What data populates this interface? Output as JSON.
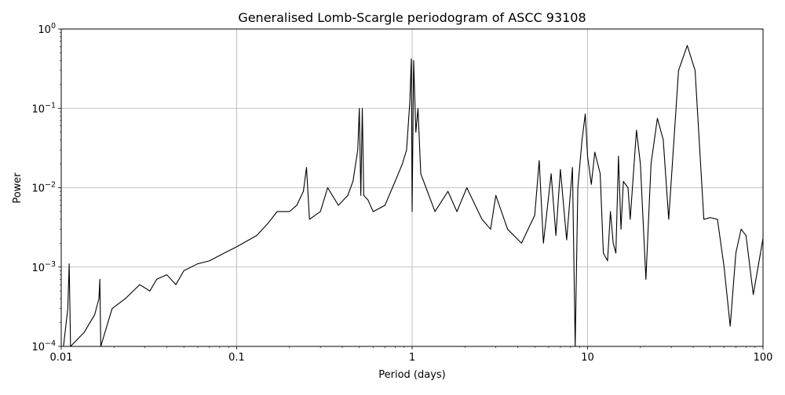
{
  "chart_data": {
    "type": "line",
    "title": "Generalised Lomb-Scargle periodogram of ASCC 93108",
    "xlabel": "Period (days)",
    "ylabel": "Power",
    "xscale": "log",
    "yscale": "log",
    "xlim": [
      0.01,
      100
    ],
    "ylim": [
      0.0001,
      1
    ],
    "grid": true,
    "line_color": "#000000",
    "x_ticks": [
      {
        "value": 0.01,
        "label": "0.01"
      },
      {
        "value": 0.1,
        "label": "0.1"
      },
      {
        "value": 1,
        "label": "1"
      },
      {
        "value": 10,
        "label": "10"
      },
      {
        "value": 100,
        "label": "100"
      }
    ],
    "y_ticks": [
      {
        "value": 0.0001,
        "base": "10",
        "exp": "−4"
      },
      {
        "value": 0.001,
        "base": "10",
        "exp": "−3"
      },
      {
        "value": 0.01,
        "base": "10",
        "exp": "−2"
      },
      {
        "value": 0.1,
        "base": "10",
        "exp": "−1"
      },
      {
        "value": 1,
        "base": "10",
        "exp": "0"
      }
    ],
    "series": [
      {
        "color": "#000000",
        "points": [
          [
            0.0103,
            0.0001
          ],
          [
            0.0109,
            0.0003
          ],
          [
            0.0111,
            0.0011
          ],
          [
            0.0113,
            0.0001
          ],
          [
            0.0135,
            0.00015
          ],
          [
            0.0155,
            0.00025
          ],
          [
            0.0164,
            0.0004
          ],
          [
            0.0166,
            0.0007
          ],
          [
            0.0168,
            0.0001
          ],
          [
            0.0195,
            0.0003
          ],
          [
            0.0232,
            0.0004
          ],
          [
            0.028,
            0.0006
          ],
          [
            0.032,
            0.0005
          ],
          [
            0.035,
            0.0007
          ],
          [
            0.04,
            0.0008
          ],
          [
            0.045,
            0.0006
          ],
          [
            0.05,
            0.0009
          ],
          [
            0.06,
            0.0011
          ],
          [
            0.07,
            0.0012
          ],
          [
            0.085,
            0.0015
          ],
          [
            0.1,
            0.0018
          ],
          [
            0.13,
            0.0025
          ],
          [
            0.15,
            0.0035
          ],
          [
            0.17,
            0.005
          ],
          [
            0.2,
            0.005
          ],
          [
            0.22,
            0.006
          ],
          [
            0.24,
            0.009
          ],
          [
            0.25,
            0.018
          ],
          [
            0.26,
            0.004
          ],
          [
            0.3,
            0.005
          ],
          [
            0.33,
            0.01
          ],
          [
            0.38,
            0.006
          ],
          [
            0.43,
            0.008
          ],
          [
            0.46,
            0.012
          ],
          [
            0.49,
            0.03
          ],
          [
            0.5,
            0.1
          ],
          [
            0.51,
            0.008
          ],
          [
            0.52,
            0.1
          ],
          [
            0.53,
            0.008
          ],
          [
            0.56,
            0.007
          ],
          [
            0.6,
            0.005
          ],
          [
            0.7,
            0.006
          ],
          [
            0.8,
            0.012
          ],
          [
            0.88,
            0.02
          ],
          [
            0.93,
            0.03
          ],
          [
            0.97,
            0.12
          ],
          [
            0.99,
            0.42
          ],
          [
            1.0,
            0.005
          ],
          [
            1.02,
            0.4
          ],
          [
            1.05,
            0.05
          ],
          [
            1.08,
            0.1
          ],
          [
            1.12,
            0.015
          ],
          [
            1.2,
            0.01
          ],
          [
            1.35,
            0.005
          ],
          [
            1.6,
            0.009
          ],
          [
            1.8,
            0.005
          ],
          [
            2.05,
            0.01
          ],
          [
            2.5,
            0.004
          ],
          [
            2.8,
            0.003
          ],
          [
            3.0,
            0.008
          ],
          [
            3.5,
            0.003
          ],
          [
            4.2,
            0.002
          ],
          [
            5.0,
            0.0045
          ],
          [
            5.3,
            0.022
          ],
          [
            5.6,
            0.002
          ],
          [
            6.2,
            0.015
          ],
          [
            6.6,
            0.0025
          ],
          [
            7.0,
            0.017
          ],
          [
            7.6,
            0.0022
          ],
          [
            8.2,
            0.018
          ],
          [
            8.5,
            0.0001
          ],
          [
            8.8,
            0.01
          ],
          [
            9.3,
            0.04
          ],
          [
            9.7,
            0.085
          ],
          [
            10.0,
            0.025
          ],
          [
            10.5,
            0.011
          ],
          [
            11.0,
            0.028
          ],
          [
            11.8,
            0.015
          ],
          [
            12.3,
            0.0015
          ],
          [
            13.0,
            0.0012
          ],
          [
            13.5,
            0.005
          ],
          [
            14.0,
            0.002
          ],
          [
            14.5,
            0.0015
          ],
          [
            15.0,
            0.025
          ],
          [
            15.5,
            0.003
          ],
          [
            16.0,
            0.012
          ],
          [
            17.0,
            0.01
          ],
          [
            17.5,
            0.004
          ],
          [
            19.0,
            0.053
          ],
          [
            20.0,
            0.02
          ],
          [
            21.5,
            0.0007
          ],
          [
            23.0,
            0.02
          ],
          [
            25.0,
            0.075
          ],
          [
            27.0,
            0.04
          ],
          [
            29.0,
            0.004
          ],
          [
            33.0,
            0.3
          ],
          [
            37.0,
            0.62
          ],
          [
            41.0,
            0.3
          ],
          [
            46.0,
            0.004
          ],
          [
            50.0,
            0.0042
          ],
          [
            55.0,
            0.004
          ],
          [
            60.0,
            0.001
          ],
          [
            65.0,
            0.00018
          ],
          [
            70.0,
            0.0015
          ],
          [
            75.0,
            0.003
          ],
          [
            80.0,
            0.0025
          ],
          [
            88.0,
            0.00045
          ],
          [
            100.0,
            0.0023
          ]
        ]
      }
    ]
  }
}
